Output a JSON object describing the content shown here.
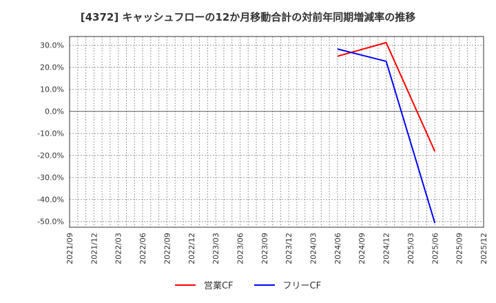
{
  "chart_data": {
    "type": "line",
    "title": "[4372]  キャッシュフローの12か月移動合計の対前年同期増減率の推移",
    "xlabel": "",
    "ylabel": "",
    "categories": [
      "2021/09",
      "2021/12",
      "2022/03",
      "2022/06",
      "2022/09",
      "2022/12",
      "2023/03",
      "2023/06",
      "2023/09",
      "2023/12",
      "2024/03",
      "2024/06",
      "2024/09",
      "2024/12",
      "2025/03",
      "2025/06",
      "2025/09",
      "2025/12"
    ],
    "yticks": [
      "30.0%",
      "20.0%",
      "10.0%",
      "0.0%",
      "-10.0%",
      "-20.0%",
      "-30.0%",
      "-40.0%",
      "-50.0%"
    ],
    "ylim": [
      -53.5,
      34.5
    ],
    "grid": true,
    "legend_position": "bottom",
    "series": [
      {
        "name": "営業CF",
        "color": "#ff0000",
        "x": [
          "2024/06",
          "2024/12",
          "2025/06"
        ],
        "values": [
          25.0,
          31.2,
          -18.2
        ]
      },
      {
        "name": "フリーCF",
        "color": "#0000ff",
        "x": [
          "2024/06",
          "2024/12",
          "2025/06"
        ],
        "values": [
          28.3,
          22.7,
          -50.7
        ]
      }
    ]
  }
}
